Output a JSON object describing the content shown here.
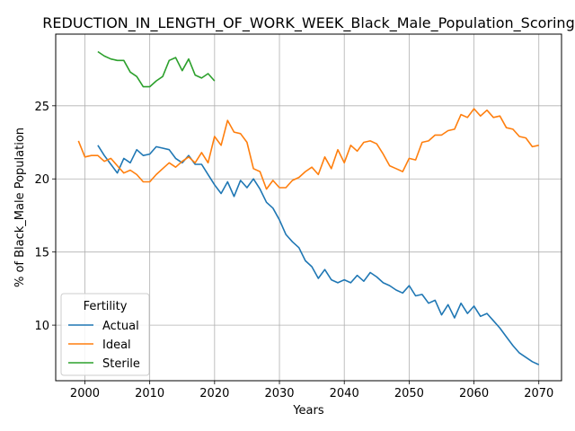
{
  "chart_data": {
    "type": "line",
    "title": "REDUCTION_IN_LENGTH_OF_WORK_WEEK_Black_Male_Population_Scoring",
    "xlabel": "Years",
    "ylabel": "% of Black_Male Population",
    "xlim": [
      1995.5,
      2073.5
    ],
    "ylim": [
      6.2,
      29.9
    ],
    "xticks": [
      2000,
      2010,
      2020,
      2030,
      2040,
      2050,
      2060,
      2070
    ],
    "yticks": [
      10,
      15,
      20,
      25
    ],
    "grid": true,
    "legend": {
      "title": "Fertility",
      "position": "lower-left"
    },
    "series": [
      {
        "name": "Actual",
        "color": "#1f77b4",
        "x": [
          2002,
          2003,
          2004,
          2005,
          2006,
          2007,
          2008,
          2009,
          2010,
          2011,
          2012,
          2013,
          2014,
          2015,
          2016,
          2017,
          2018,
          2019,
          2020,
          2021,
          2022,
          2023,
          2024,
          2025,
          2026,
          2027,
          2028,
          2029,
          2030,
          2031,
          2032,
          2033,
          2034,
          2035,
          2036,
          2037,
          2038,
          2039,
          2040,
          2041,
          2042,
          2043,
          2044,
          2045,
          2046,
          2047,
          2048,
          2049,
          2050,
          2051,
          2052,
          2053,
          2054,
          2055,
          2056,
          2057,
          2058,
          2059,
          2060,
          2061,
          2062,
          2063,
          2064,
          2065,
          2066,
          2067,
          2068,
          2069,
          2070
        ],
        "values": [
          22.3,
          21.6,
          21.0,
          20.4,
          21.4,
          21.1,
          22.0,
          21.6,
          21.7,
          22.2,
          22.1,
          22.0,
          21.4,
          21.1,
          21.6,
          21.0,
          21.0,
          20.3,
          19.6,
          19.0,
          19.8,
          18.8,
          19.9,
          19.4,
          20.0,
          19.3,
          18.4,
          18.0,
          17.2,
          16.2,
          15.7,
          15.3,
          14.4,
          14.0,
          13.2,
          13.8,
          13.1,
          12.9,
          13.1,
          12.9,
          13.4,
          13.0,
          13.6,
          13.3,
          12.9,
          12.7,
          12.4,
          12.2,
          12.7,
          12.0,
          12.1,
          11.5,
          11.7,
          10.7,
          11.4,
          10.5,
          11.5,
          10.8,
          11.3,
          10.6,
          10.8,
          10.3,
          9.8,
          9.2,
          8.6,
          8.1,
          7.8,
          7.5,
          7.3
        ]
      },
      {
        "name": "Ideal",
        "color": "#ff7f0e",
        "x": [
          1999,
          2000,
          2001,
          2002,
          2003,
          2004,
          2005,
          2006,
          2007,
          2008,
          2009,
          2010,
          2011,
          2012,
          2013,
          2014,
          2015,
          2016,
          2017,
          2018,
          2019,
          2020,
          2021,
          2022,
          2023,
          2024,
          2025,
          2026,
          2027,
          2028,
          2029,
          2030,
          2031,
          2032,
          2033,
          2034,
          2035,
          2036,
          2037,
          2038,
          2039,
          2040,
          2041,
          2042,
          2043,
          2044,
          2045,
          2046,
          2047,
          2048,
          2049,
          2050,
          2051,
          2052,
          2053,
          2054,
          2055,
          2056,
          2057,
          2058,
          2059,
          2060,
          2061,
          2062,
          2063,
          2064,
          2065,
          2066,
          2067,
          2068,
          2069,
          2070
        ],
        "values": [
          22.6,
          21.5,
          21.6,
          21.6,
          21.2,
          21.4,
          20.9,
          20.4,
          20.6,
          20.3,
          19.8,
          19.8,
          20.3,
          20.7,
          21.1,
          20.8,
          21.2,
          21.5,
          21.1,
          21.8,
          21.1,
          22.9,
          22.3,
          24.0,
          23.2,
          23.1,
          22.5,
          20.7,
          20.5,
          19.3,
          19.9,
          19.4,
          19.4,
          19.9,
          20.1,
          20.5,
          20.8,
          20.3,
          21.5,
          20.7,
          22.0,
          21.1,
          22.3,
          21.9,
          22.5,
          22.6,
          22.4,
          21.7,
          20.9,
          20.7,
          20.5,
          21.4,
          21.3,
          22.5,
          22.6,
          23.0,
          23.0,
          23.3,
          23.4,
          24.4,
          24.2,
          24.8,
          24.3,
          24.7,
          24.2,
          24.3,
          23.5,
          23.4,
          22.9,
          22.8,
          22.2,
          22.3
        ]
      },
      {
        "name": "Sterile",
        "color": "#2ca02c",
        "x": [
          2002,
          2003,
          2004,
          2005,
          2006,
          2007,
          2008,
          2009,
          2010,
          2011,
          2012,
          2013,
          2014,
          2015,
          2016,
          2017,
          2018,
          2019,
          2020
        ],
        "values": [
          28.7,
          28.4,
          28.2,
          28.1,
          28.1,
          27.3,
          27.0,
          26.3,
          26.3,
          26.7,
          27.0,
          28.1,
          28.3,
          27.4,
          28.2,
          27.1,
          26.9,
          27.2,
          26.7
        ]
      }
    ]
  }
}
